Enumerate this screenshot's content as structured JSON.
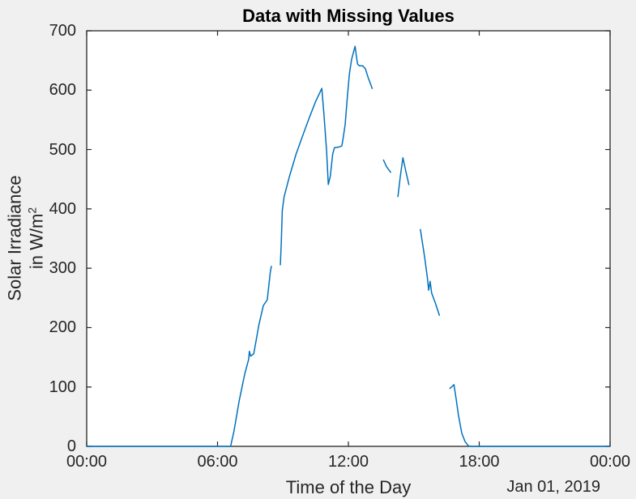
{
  "figure": {
    "background": "#f0f0f0",
    "plot_background": "#ffffff",
    "axis_color": "#262626",
    "title_color": "#000000",
    "label_color": "#262626"
  },
  "chart_data": {
    "type": "line",
    "title": "Data with Missing Values",
    "xlabel": "Time of the Day",
    "x_secondary_label": "Jan 01, 2019",
    "ylabel_line1": "Solar Irradiance",
    "ylabel_line2_base": "in W/m",
    "ylabel_line2_exponent": "2",
    "xlim": [
      0,
      24
    ],
    "ylim": [
      0,
      700
    ],
    "x_ticks": [
      0,
      6,
      12,
      18,
      24
    ],
    "x_tick_labels": [
      "00:00",
      "06:00",
      "12:00",
      "18:00",
      "00:00"
    ],
    "y_ticks": [
      0,
      100,
      200,
      300,
      400,
      500,
      600,
      700
    ],
    "y_tick_labels": [
      "0",
      "100",
      "200",
      "300",
      "400",
      "500",
      "600",
      "700"
    ],
    "line_color": "#0072BD",
    "grid": false,
    "legend": null,
    "series": [
      {
        "name": "solar-irradiance",
        "x_unit": "hours",
        "y_unit": "W/m^2",
        "segments": [
          [
            [
              0,
              0
            ],
            [
              1,
              0
            ],
            [
              2,
              0
            ],
            [
              3,
              0
            ],
            [
              4,
              0
            ],
            [
              5,
              0
            ],
            [
              6,
              0
            ],
            [
              6.6,
              0
            ],
            [
              6.75,
              25
            ],
            [
              7.0,
              78
            ],
            [
              7.25,
              122
            ],
            [
              7.43,
              147
            ],
            [
              7.46,
              160
            ],
            [
              7.52,
              152
            ],
            [
              7.66,
              156
            ],
            [
              7.9,
              205
            ],
            [
              8.1,
              237
            ],
            [
              8.28,
              247
            ],
            [
              8.42,
              293
            ],
            [
              8.47,
              304
            ]
          ],
          [
            [
              8.88,
              305
            ],
            [
              8.92,
              340
            ],
            [
              8.97,
              397
            ],
            [
              9.05,
              420
            ],
            [
              9.3,
              455
            ],
            [
              9.6,
              492
            ],
            [
              9.9,
              523
            ],
            [
              10.2,
              553
            ],
            [
              10.5,
              581
            ],
            [
              10.68,
              595
            ],
            [
              10.78,
              603
            ],
            [
              10.88,
              558
            ],
            [
              11.0,
              498
            ],
            [
              11.08,
              441
            ],
            [
              11.17,
              455
            ],
            [
              11.28,
              492
            ],
            [
              11.36,
              503
            ],
            [
              11.55,
              504
            ],
            [
              11.7,
              506
            ],
            [
              11.75,
              517
            ],
            [
              11.85,
              542
            ],
            [
              11.95,
              588
            ],
            [
              12.05,
              628
            ],
            [
              12.15,
              652
            ],
            [
              12.25,
              666
            ],
            [
              12.31,
              674
            ],
            [
              12.37,
              656
            ],
            [
              12.42,
              644
            ],
            [
              12.5,
              641
            ],
            [
              12.65,
              641
            ],
            [
              12.78,
              636
            ],
            [
              12.9,
              622
            ],
            [
              13.0,
              612
            ],
            [
              13.1,
              602
            ]
          ],
          [
            [
              13.6,
              483
            ],
            [
              13.75,
              471
            ],
            [
              13.95,
              461
            ]
          ],
          [
            [
              14.27,
              420
            ],
            [
              14.38,
              455
            ],
            [
              14.5,
              486
            ],
            [
              14.63,
              464
            ],
            [
              14.78,
              440
            ]
          ],
          [
            [
              15.3,
              366
            ],
            [
              15.5,
              318
            ],
            [
              15.62,
              285
            ],
            [
              15.68,
              263
            ],
            [
              15.75,
              278
            ],
            [
              15.82,
              258
            ],
            [
              16.0,
              240
            ],
            [
              16.18,
              220
            ]
          ],
          [
            [
              16.64,
              97
            ],
            [
              16.76,
              101
            ],
            [
              16.84,
              104
            ],
            [
              16.95,
              78
            ],
            [
              17.05,
              52
            ],
            [
              17.2,
              22
            ],
            [
              17.35,
              8
            ],
            [
              17.5,
              1
            ],
            [
              17.6,
              0
            ],
            [
              18,
              0
            ],
            [
              19,
              0
            ],
            [
              20,
              0
            ],
            [
              21,
              0
            ],
            [
              22,
              0
            ],
            [
              23,
              0
            ],
            [
              24,
              0
            ]
          ]
        ]
      }
    ]
  }
}
